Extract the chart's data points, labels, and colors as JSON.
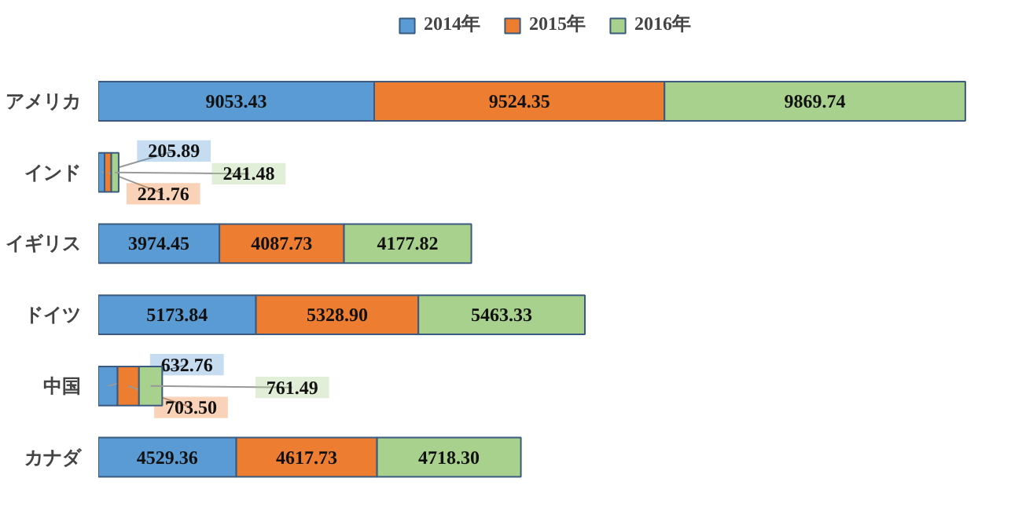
{
  "chart_data": {
    "type": "bar",
    "orientation": "horizontal",
    "stacked": true,
    "legend": "top",
    "grid": false,
    "categories": [
      "アメリカ",
      "インド",
      "イギリス",
      "ドイツ",
      "中国",
      "カナダ"
    ],
    "series": [
      {
        "name": "2014年",
        "color": "#5b9bd5",
        "values": [
          9053.43,
          205.89,
          3974.45,
          5173.84,
          632.76,
          4529.36
        ],
        "value_labels": [
          "9053.43",
          "205.89",
          "3974.45",
          "5173.84",
          "632.76",
          "4529.36"
        ]
      },
      {
        "name": "2015年",
        "color": "#ed7d31",
        "values": [
          9524.35,
          221.76,
          4087.73,
          5328.9,
          703.5,
          4617.73
        ],
        "value_labels": [
          "9524.35",
          "221.76",
          "4087.73",
          "5328.90",
          "703.50",
          "4617.73"
        ]
      },
      {
        "name": "2016年",
        "color": "#a9d18e",
        "values": [
          9869.74,
          241.48,
          4177.82,
          5463.33,
          761.49,
          4718.3
        ],
        "value_labels": [
          "9869.74",
          "241.48",
          "4177.82",
          "5463.33",
          "761.49",
          "4718.30"
        ]
      }
    ]
  }
}
